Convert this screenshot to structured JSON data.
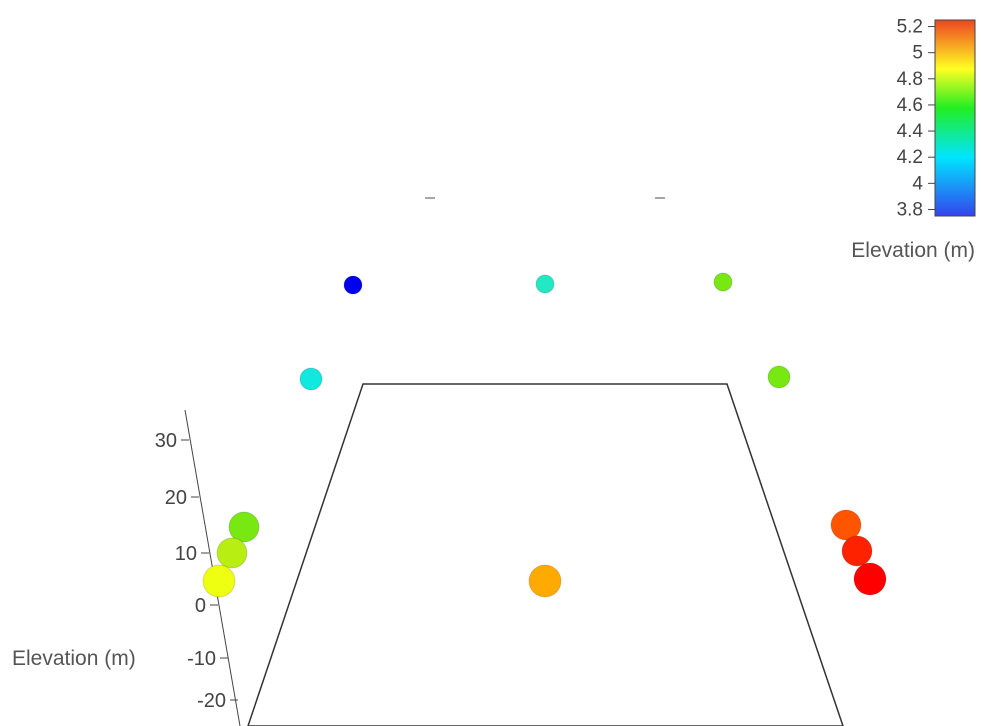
{
  "chart_data": {
    "type": "scatter",
    "title": "",
    "axes": {
      "z": {
        "label": "Elevation (m)",
        "ticks": [
          30,
          20,
          10,
          0,
          -10,
          -20
        ],
        "tick_labels": [
          "30",
          "20",
          "10",
          "0",
          "-10",
          "-20"
        ]
      }
    },
    "colorbar": {
      "title": "Elevation (m)",
      "range": [
        3.75,
        5.25
      ],
      "ticks": [
        3.8,
        4,
        4.2,
        4.4,
        4.6,
        4.8,
        5,
        5.2
      ],
      "tick_labels": [
        "3.8",
        "4",
        "4.2",
        "4.4",
        "4.6",
        "4.8",
        "5",
        "5.2"
      ],
      "colorscale": [
        "#3333ff",
        "#00ffff",
        "#00ff00",
        "#ffff00",
        "#ff0000"
      ]
    },
    "points": [
      {
        "elevation": 3.8,
        "color": "#0000ee"
      },
      {
        "elevation": 4.3,
        "color": "#22e8c4"
      },
      {
        "elevation": 4.7,
        "color": "#77e811"
      },
      {
        "elevation": 4.35,
        "color": "#11e8e0"
      },
      {
        "elevation": 4.7,
        "color": "#77e811"
      },
      {
        "elevation": 4.7,
        "color": "#77e811"
      },
      {
        "elevation": 4.8,
        "color": "#b8ee11"
      },
      {
        "elevation": 4.85,
        "color": "#eeff11"
      },
      {
        "elevation": 5.0,
        "color": "#ffaa00"
      },
      {
        "elevation": 5.1,
        "color": "#ff5500"
      },
      {
        "elevation": 5.15,
        "color": "#ff2200"
      },
      {
        "elevation": 5.2,
        "color": "#ff0000"
      }
    ],
    "grid": false,
    "legend": "right"
  }
}
